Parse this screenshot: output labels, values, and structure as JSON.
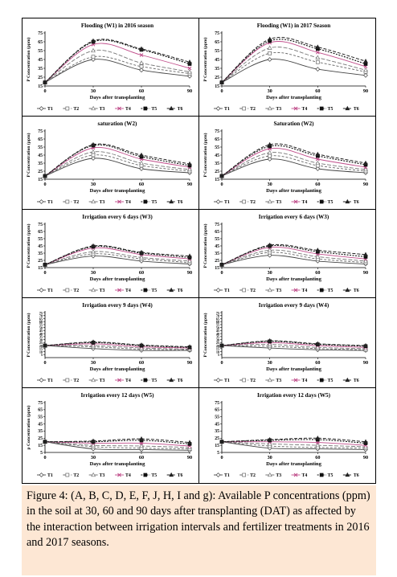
{
  "legend": [
    "T1",
    "T2",
    "T3",
    "T4",
    "T5",
    "T6"
  ],
  "chart_data": [
    {
      "type": "line",
      "title": "Flooding (W1) in 2016 season",
      "ylabel": "P Concentration (ppm)",
      "xlabel": "Days after transplanting",
      "x": [
        0,
        30,
        60,
        90
      ],
      "ylim": [
        15,
        75
      ],
      "yticks": [
        15,
        25,
        35,
        45,
        55,
        65,
        75
      ],
      "xticks": [
        0,
        30,
        60,
        90
      ],
      "series": [
        {
          "name": "T1",
          "values": [
            19,
            45,
            33,
            26
          ]
        },
        {
          "name": "T2",
          "values": [
            19,
            48,
            37,
            29
          ]
        },
        {
          "name": "T3",
          "values": [
            19,
            55,
            41,
            31
          ]
        },
        {
          "name": "T4",
          "values": [
            19,
            62,
            50,
            35
          ]
        },
        {
          "name": "T5",
          "values": [
            19,
            65,
            56,
            40
          ]
        },
        {
          "name": "T6",
          "values": [
            19,
            66,
            57,
            42
          ]
        }
      ]
    },
    {
      "type": "line",
      "title": "Flooding (W1) in 2017 Season",
      "ylabel": "P Concentration (ppm)",
      "xlabel": "Days after transplanting",
      "x": [
        0,
        30,
        60,
        90
      ],
      "ylim": [
        15,
        75
      ],
      "yticks": [
        15,
        25,
        35,
        45,
        55,
        65,
        75
      ],
      "xticks": [
        0,
        30,
        60,
        90
      ],
      "series": [
        {
          "name": "T1",
          "values": [
            19,
            45,
            34,
            27
          ]
        },
        {
          "name": "T2",
          "values": [
            19,
            52,
            42,
            31
          ]
        },
        {
          "name": "T3",
          "values": [
            19,
            58,
            47,
            33
          ]
        },
        {
          "name": "T4",
          "values": [
            19,
            64,
            53,
            37
          ]
        },
        {
          "name": "T5",
          "values": [
            19,
            66,
            57,
            40
          ]
        },
        {
          "name": "T6",
          "values": [
            19,
            68,
            59,
            43
          ]
        }
      ]
    },
    {
      "type": "line",
      "title": "saturation (W2)",
      "ylabel": "P Concentration (ppm)",
      "xlabel": "Days after transplanting",
      "x": [
        0,
        30,
        60,
        90
      ],
      "ylim": [
        15,
        75
      ],
      "yticks": [
        15,
        25,
        35,
        45,
        55,
        65,
        75
      ],
      "xticks": [
        0,
        30,
        60,
        90
      ],
      "series": [
        {
          "name": "T1",
          "values": [
            19,
            41,
            28,
            23
          ]
        },
        {
          "name": "T2",
          "values": [
            19,
            45,
            32,
            25
          ]
        },
        {
          "name": "T3",
          "values": [
            19,
            49,
            35,
            27
          ]
        },
        {
          "name": "T4",
          "values": [
            19,
            54,
            40,
            30
          ]
        },
        {
          "name": "T5",
          "values": [
            19,
            57,
            43,
            32
          ]
        },
        {
          "name": "T6",
          "values": [
            19,
            58,
            45,
            34
          ]
        }
      ]
    },
    {
      "type": "line",
      "title": "Saturation (W2)",
      "ylabel": "P Concentration (ppm)",
      "xlabel": "Days after transplanting",
      "x": [
        0,
        30,
        60,
        90
      ],
      "ylim": [
        15,
        75
      ],
      "yticks": [
        15,
        25,
        35,
        45,
        55,
        65,
        75
      ],
      "xticks": [
        0,
        30,
        60,
        90
      ],
      "series": [
        {
          "name": "T1",
          "values": [
            19,
            40,
            28,
            23
          ]
        },
        {
          "name": "T2",
          "values": [
            19,
            44,
            32,
            25
          ]
        },
        {
          "name": "T3",
          "values": [
            19,
            48,
            35,
            27
          ]
        },
        {
          "name": "T4",
          "values": [
            19,
            53,
            40,
            30
          ]
        },
        {
          "name": "T5",
          "values": [
            19,
            56,
            44,
            33
          ]
        },
        {
          "name": "T6",
          "values": [
            19,
            58,
            46,
            35
          ]
        }
      ]
    },
    {
      "type": "line",
      "title": "Irrigation every 6 days (W3)",
      "ylabel": "P Concentration (ppm)",
      "xlabel": "Days after transplanting",
      "x": [
        0,
        30,
        60,
        90
      ],
      "ylim": [
        15,
        75
      ],
      "yticks": [
        15,
        25,
        35,
        45,
        55,
        65,
        75
      ],
      "xticks": [
        0,
        30,
        60,
        90
      ],
      "series": [
        {
          "name": "T1",
          "values": [
            19,
            31,
            24,
            20
          ]
        },
        {
          "name": "T2",
          "values": [
            19,
            34,
            27,
            22
          ]
        },
        {
          "name": "T3",
          "values": [
            19,
            37,
            29,
            24
          ]
        },
        {
          "name": "T4",
          "values": [
            19,
            42,
            33,
            27
          ]
        },
        {
          "name": "T5",
          "values": [
            19,
            44,
            35,
            29
          ]
        },
        {
          "name": "T6",
          "values": [
            19,
            45,
            36,
            31
          ]
        }
      ]
    },
    {
      "type": "line",
      "title": "Irrigation every 6 days (W3)",
      "ylabel": "P Concentration (ppm)",
      "xlabel": "Days after transplanting",
      "x": [
        0,
        30,
        60,
        90
      ],
      "ylim": [
        15,
        75
      ],
      "yticks": [
        15,
        25,
        35,
        45,
        55,
        65,
        75
      ],
      "xticks": [
        0,
        30,
        60,
        90
      ],
      "series": [
        {
          "name": "T1",
          "values": [
            19,
            32,
            24,
            20
          ]
        },
        {
          "name": "T2",
          "values": [
            19,
            36,
            27,
            22
          ]
        },
        {
          "name": "T3",
          "values": [
            19,
            39,
            30,
            24
          ]
        },
        {
          "name": "T4",
          "values": [
            19,
            43,
            34,
            27
          ]
        },
        {
          "name": "T5",
          "values": [
            19,
            45,
            37,
            30
          ]
        },
        {
          "name": "T6",
          "values": [
            19,
            46,
            39,
            33
          ]
        }
      ]
    },
    {
      "type": "line",
      "title": "Irrigation every 9 days (W4)",
      "ylabel": "P Concentration (ppm)",
      "xlabel": "Days after transplanting",
      "x": [
        0,
        30,
        60,
        90
      ],
      "ylim": [
        0,
        75
      ],
      "yticks": [
        5,
        10,
        15,
        20,
        25,
        30,
        35,
        40,
        45,
        50,
        55,
        60,
        65,
        70,
        75
      ],
      "xticks": [
        0,
        30,
        60,
        90
      ],
      "series": [
        {
          "name": "T1",
          "values": [
            20,
            15,
            12,
            12
          ]
        },
        {
          "name": "T2",
          "values": [
            20,
            18,
            14,
            13
          ]
        },
        {
          "name": "T3",
          "values": [
            20,
            20,
            16,
            14
          ]
        },
        {
          "name": "T4",
          "values": [
            20,
            23,
            18,
            16
          ]
        },
        {
          "name": "T5",
          "values": [
            20,
            25,
            20,
            17
          ]
        },
        {
          "name": "T6",
          "values": [
            20,
            26,
            21,
            18
          ]
        }
      ]
    },
    {
      "type": "line",
      "title": "Irrigation every 9 days (W4)",
      "ylabel": "P Concentration (ppm)",
      "xlabel": "Days after transplanting",
      "x": [
        0,
        30,
        60,
        90
      ],
      "ylim": [
        0,
        75
      ],
      "yticks": [
        5,
        10,
        15,
        20,
        25,
        30,
        35,
        40,
        45,
        50,
        55,
        60,
        65,
        70,
        75
      ],
      "xticks": [
        0,
        30,
        60,
        90
      ],
      "series": [
        {
          "name": "T1",
          "values": [
            20,
            16,
            13,
            12
          ]
        },
        {
          "name": "T2",
          "values": [
            20,
            19,
            15,
            13
          ]
        },
        {
          "name": "T3",
          "values": [
            20,
            22,
            17,
            15
          ]
        },
        {
          "name": "T4",
          "values": [
            20,
            25,
            20,
            17
          ]
        },
        {
          "name": "T5",
          "values": [
            20,
            27,
            22,
            19
          ]
        },
        {
          "name": "T6",
          "values": [
            20,
            28,
            23,
            20
          ]
        }
      ]
    },
    {
      "type": "line",
      "title": "Irrigation every 12 days (W5)",
      "ylabel": "p Concentration (ppm)",
      "xlabel": "Days after transplanting",
      "x": [
        0,
        30,
        60,
        90
      ],
      "ylim": [
        5,
        75
      ],
      "yticks": [
        5,
        15,
        25,
        35,
        45,
        55,
        65,
        75
      ],
      "xticks": [
        0,
        30,
        60,
        90
      ],
      "series": [
        {
          "name": "T1",
          "values": [
            20,
            10,
            9,
            8
          ]
        },
        {
          "name": "T2",
          "values": [
            20,
            13,
            11,
            10
          ]
        },
        {
          "name": "T3",
          "values": [
            20,
            15,
            14,
            12
          ]
        },
        {
          "name": "T4",
          "values": [
            20,
            18,
            18,
            14
          ]
        },
        {
          "name": "T5",
          "values": [
            20,
            20,
            22,
            17
          ]
        },
        {
          "name": "T6",
          "values": [
            20,
            21,
            24,
            19
          ]
        }
      ]
    },
    {
      "type": "line",
      "title": "Irrigation every 12 days (W5)",
      "ylabel": "",
      "xlabel": "Days after transplanting",
      "x": [
        0,
        30,
        60,
        90
      ],
      "ylim": [
        5,
        75
      ],
      "yticks": [
        5,
        15,
        25,
        35,
        45,
        55,
        65,
        75
      ],
      "xticks": [
        0,
        30,
        60,
        90
      ],
      "series": [
        {
          "name": "T1",
          "values": [
            20,
            11,
            10,
            9
          ]
        },
        {
          "name": "T2",
          "values": [
            20,
            14,
            12,
            11
          ]
        },
        {
          "name": "T3",
          "values": [
            20,
            17,
            15,
            13
          ]
        },
        {
          "name": "T4",
          "values": [
            20,
            20,
            19,
            15
          ]
        },
        {
          "name": "T5",
          "values": [
            20,
            22,
            23,
            18
          ]
        },
        {
          "name": "T6",
          "values": [
            20,
            23,
            25,
            20
          ]
        }
      ]
    }
  ],
  "caption": {
    "label": "Figure 4:",
    "text": " (A, B, C, D, E, F, J, H, I and g): Available P concentrations (ppm) in the soil at 30, 60 and 90 days after transplanting (DAT) as affected by the interaction between irrigation intervals and fertilizer treatments in 2016 and 2017 seasons."
  }
}
